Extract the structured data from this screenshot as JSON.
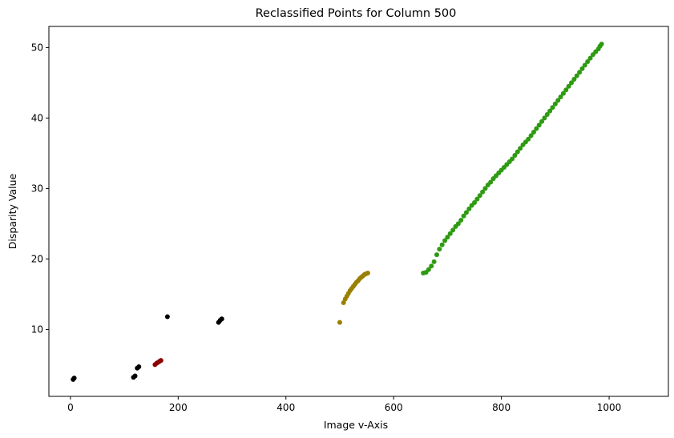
{
  "chart_data": {
    "type": "scatter",
    "title": "Reclassified Points for Column 500",
    "xlabel": "Image v-Axis",
    "ylabel": "Disparity Value",
    "xlim": [
      -40,
      1110
    ],
    "ylim": [
      0.5,
      53
    ],
    "xticks": [
      0,
      200,
      400,
      600,
      800,
      1000
    ],
    "yticks": [
      10,
      20,
      30,
      40,
      50
    ],
    "grid": false,
    "legend": "none",
    "series": [
      {
        "color": "#000000",
        "points": [
          [
            5,
            2.9
          ],
          [
            7,
            3.1
          ],
          [
            117,
            3.2
          ],
          [
            120,
            3.4
          ],
          [
            124,
            4.5
          ],
          [
            127,
            4.7
          ],
          [
            180,
            11.8
          ],
          [
            275,
            11.0
          ],
          [
            278,
            11.3
          ],
          [
            281,
            11.5
          ]
        ]
      },
      {
        "color": "#8b0000",
        "points": [
          [
            157,
            5.0
          ],
          [
            160,
            5.2
          ],
          [
            163,
            5.35
          ],
          [
            166,
            5.5
          ],
          [
            168,
            5.6
          ]
        ]
      },
      {
        "color": "#9a8000",
        "points": [
          [
            500,
            11.0
          ],
          [
            507,
            13.8
          ],
          [
            510,
            14.3
          ],
          [
            513,
            14.7
          ],
          [
            516,
            15.1
          ],
          [
            519,
            15.5
          ],
          [
            522,
            15.8
          ],
          [
            525,
            16.1
          ],
          [
            528,
            16.4
          ],
          [
            531,
            16.7
          ],
          [
            534,
            16.9
          ],
          [
            537,
            17.2
          ],
          [
            540,
            17.4
          ],
          [
            543,
            17.6
          ],
          [
            546,
            17.8
          ],
          [
            549,
            17.9
          ],
          [
            552,
            18.0
          ]
        ]
      },
      {
        "color": "#2e9a12",
        "points": [
          [
            655,
            18.0
          ],
          [
            660,
            18.1
          ],
          [
            665,
            18.5
          ],
          [
            670,
            19.0
          ],
          [
            675,
            19.6
          ],
          [
            680,
            20.6
          ],
          [
            685,
            21.4
          ],
          [
            690,
            22.0
          ],
          [
            695,
            22.6
          ],
          [
            700,
            23.1
          ],
          [
            705,
            23.6
          ],
          [
            710,
            24.1
          ],
          [
            715,
            24.6
          ],
          [
            720,
            25.0
          ],
          [
            725,
            25.5
          ],
          [
            730,
            26.1
          ],
          [
            735,
            26.6
          ],
          [
            740,
            27.1
          ],
          [
            745,
            27.6
          ],
          [
            750,
            28.0
          ],
          [
            755,
            28.5
          ],
          [
            760,
            29.0
          ],
          [
            765,
            29.5
          ],
          [
            770,
            30.0
          ],
          [
            775,
            30.5
          ],
          [
            780,
            30.9
          ],
          [
            785,
            31.4
          ],
          [
            790,
            31.8
          ],
          [
            795,
            32.2
          ],
          [
            800,
            32.6
          ],
          [
            805,
            33.0
          ],
          [
            810,
            33.4
          ],
          [
            815,
            33.8
          ],
          [
            820,
            34.2
          ],
          [
            825,
            34.7
          ],
          [
            830,
            35.2
          ],
          [
            835,
            35.7
          ],
          [
            840,
            36.2
          ],
          [
            845,
            36.6
          ],
          [
            850,
            37.0
          ],
          [
            855,
            37.5
          ],
          [
            860,
            38.0
          ],
          [
            865,
            38.5
          ],
          [
            870,
            39.0
          ],
          [
            875,
            39.5
          ],
          [
            880,
            40.0
          ],
          [
            885,
            40.5
          ],
          [
            890,
            41.0
          ],
          [
            895,
            41.5
          ],
          [
            900,
            42.0
          ],
          [
            905,
            42.5
          ],
          [
            910,
            43.0
          ],
          [
            915,
            43.5
          ],
          [
            920,
            44.0
          ],
          [
            925,
            44.5
          ],
          [
            930,
            45.0
          ],
          [
            935,
            45.5
          ],
          [
            940,
            46.0
          ],
          [
            945,
            46.5
          ],
          [
            950,
            47.0
          ],
          [
            955,
            47.5
          ],
          [
            960,
            48.0
          ],
          [
            965,
            48.5
          ],
          [
            970,
            49.0
          ],
          [
            975,
            49.4
          ],
          [
            980,
            49.8
          ],
          [
            983,
            50.2
          ],
          [
            986,
            50.5
          ]
        ]
      }
    ]
  }
}
